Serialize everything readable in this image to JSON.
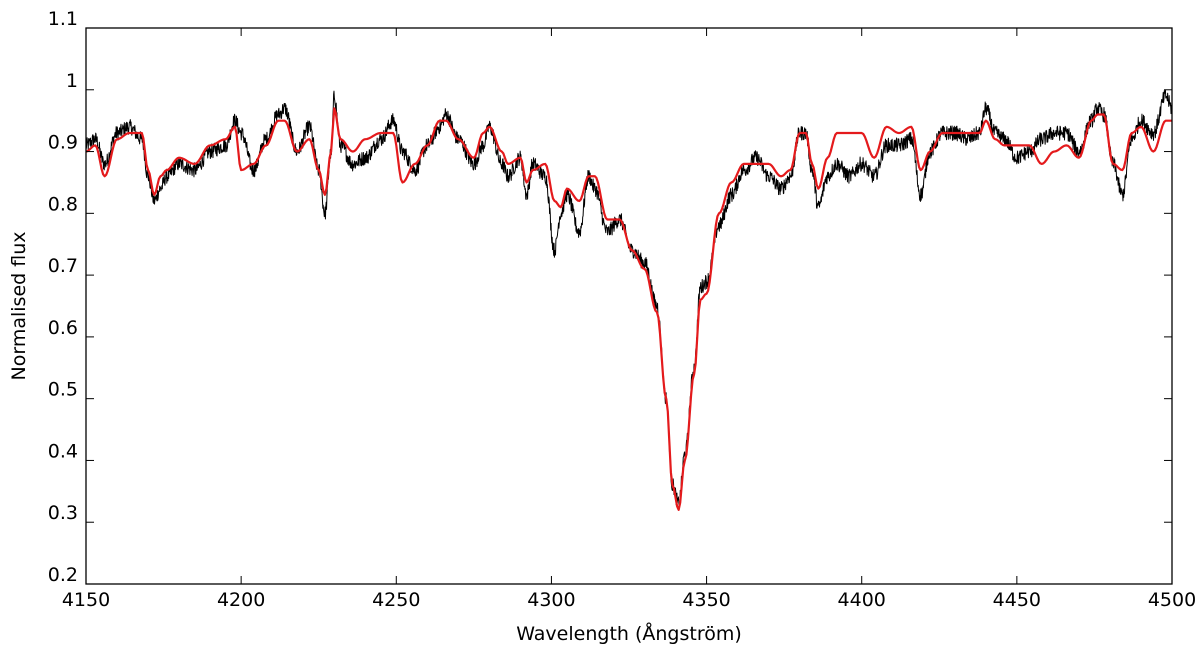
{
  "chart_data": {
    "type": "line",
    "title": "",
    "xlabel": "Wavelength (Ångström)",
    "ylabel": "Normalised flux",
    "xlim": [
      4150,
      4500
    ],
    "ylim": [
      0.2,
      1.1
    ],
    "xticks": [
      4150,
      4200,
      4250,
      4300,
      4350,
      4400,
      4450,
      4500
    ],
    "yticks": [
      0.2,
      0.3,
      0.4,
      0.5,
      0.6,
      0.7,
      0.8,
      0.9,
      1,
      1.1
    ],
    "grid": false,
    "legend": "none",
    "series": [
      {
        "color": "#000000",
        "noise": 0.012,
        "x": [
          4150,
          4153,
          4156,
          4160,
          4164,
          4168,
          4170,
          4172,
          4174,
          4176,
          4180,
          4185,
          4190,
          4195,
          4198,
          4200,
          4204,
          4208,
          4212,
          4214,
          4218,
          4222,
          4225,
          4227,
          4229,
          4230,
          4232,
          4236,
          4240,
          4245,
          4249,
          4252,
          4256,
          4260,
          4264,
          4266,
          4270,
          4275,
          4278,
          4280,
          4284,
          4286,
          4290,
          4292,
          4294,
          4298,
          4301,
          4303,
          4305,
          4309,
          4312,
          4314,
          4318,
          4322,
          4326,
          4330,
          4334,
          4337,
          4339,
          4341,
          4343,
          4346,
          4348,
          4350,
          4354,
          4358,
          4362,
          4366,
          4370,
          4374,
          4377,
          4380,
          4382,
          4384,
          4386,
          4389,
          4392,
          4396,
          4400,
          4404,
          4408,
          4412,
          4416,
          4419,
          4422,
          4426,
          4430,
          4434,
          4438,
          4440,
          4443,
          4446,
          4450,
          4454,
          4458,
          4462,
          4466,
          4470,
          4474,
          4476,
          4478,
          4481,
          4484,
          4487,
          4490,
          4494,
          4498,
          4500
        ],
        "values": [
          0.91,
          0.92,
          0.88,
          0.93,
          0.94,
          0.92,
          0.86,
          0.82,
          0.84,
          0.86,
          0.88,
          0.87,
          0.9,
          0.91,
          0.95,
          0.93,
          0.87,
          0.92,
          0.96,
          0.97,
          0.9,
          0.94,
          0.87,
          0.8,
          0.9,
          0.99,
          0.91,
          0.88,
          0.89,
          0.92,
          0.95,
          0.9,
          0.87,
          0.91,
          0.94,
          0.96,
          0.92,
          0.88,
          0.91,
          0.94,
          0.88,
          0.86,
          0.89,
          0.83,
          0.88,
          0.86,
          0.74,
          0.8,
          0.83,
          0.77,
          0.86,
          0.84,
          0.77,
          0.79,
          0.74,
          0.72,
          0.65,
          0.5,
          0.36,
          0.33,
          0.41,
          0.55,
          0.68,
          0.69,
          0.78,
          0.83,
          0.87,
          0.89,
          0.86,
          0.84,
          0.86,
          0.93,
          0.93,
          0.87,
          0.81,
          0.86,
          0.88,
          0.86,
          0.88,
          0.86,
          0.91,
          0.91,
          0.92,
          0.83,
          0.9,
          0.93,
          0.93,
          0.92,
          0.93,
          0.97,
          0.93,
          0.92,
          0.89,
          0.9,
          0.92,
          0.93,
          0.93,
          0.9,
          0.95,
          0.97,
          0.96,
          0.88,
          0.83,
          0.92,
          0.95,
          0.93,
          0.99,
          0.97
        ]
      },
      {
        "color": "#e41a1c",
        "noise": 0,
        "x": [
          4150,
          4153,
          4156,
          4160,
          4164,
          4168,
          4170,
          4172,
          4174,
          4176,
          4180,
          4185,
          4190,
          4195,
          4198,
          4200,
          4204,
          4208,
          4212,
          4214,
          4218,
          4222,
          4225,
          4227,
          4229,
          4230,
          4232,
          4236,
          4240,
          4245,
          4249,
          4252,
          4256,
          4260,
          4264,
          4266,
          4270,
          4275,
          4278,
          4280,
          4284,
          4286,
          4290,
          4292,
          4294,
          4298,
          4301,
          4303,
          4305,
          4309,
          4312,
          4314,
          4318,
          4322,
          4326,
          4330,
          4334,
          4337,
          4339,
          4341,
          4343,
          4346,
          4348,
          4350,
          4354,
          4358,
          4362,
          4366,
          4370,
          4374,
          4377,
          4380,
          4382,
          4384,
          4386,
          4389,
          4392,
          4396,
          4400,
          4404,
          4408,
          4412,
          4416,
          4419,
          4422,
          4426,
          4430,
          4434,
          4438,
          4440,
          4443,
          4446,
          4450,
          4454,
          4458,
          4462,
          4466,
          4470,
          4474,
          4476,
          4478,
          4481,
          4484,
          4487,
          4490,
          4494,
          4498,
          4500
        ],
        "values": [
          0.9,
          0.91,
          0.86,
          0.92,
          0.93,
          0.93,
          0.87,
          0.83,
          0.86,
          0.87,
          0.89,
          0.88,
          0.91,
          0.92,
          0.94,
          0.87,
          0.88,
          0.91,
          0.95,
          0.95,
          0.9,
          0.92,
          0.87,
          0.83,
          0.9,
          0.97,
          0.92,
          0.9,
          0.92,
          0.93,
          0.93,
          0.85,
          0.88,
          0.91,
          0.95,
          0.95,
          0.92,
          0.89,
          0.93,
          0.94,
          0.9,
          0.88,
          0.89,
          0.85,
          0.87,
          0.88,
          0.82,
          0.81,
          0.84,
          0.82,
          0.86,
          0.86,
          0.79,
          0.79,
          0.74,
          0.71,
          0.64,
          0.5,
          0.36,
          0.32,
          0.4,
          0.54,
          0.66,
          0.67,
          0.8,
          0.85,
          0.88,
          0.88,
          0.88,
          0.86,
          0.87,
          0.93,
          0.93,
          0.88,
          0.84,
          0.89,
          0.93,
          0.93,
          0.93,
          0.89,
          0.94,
          0.93,
          0.94,
          0.87,
          0.9,
          0.93,
          0.93,
          0.93,
          0.93,
          0.95,
          0.92,
          0.91,
          0.91,
          0.91,
          0.88,
          0.9,
          0.91,
          0.89,
          0.95,
          0.96,
          0.96,
          0.88,
          0.87,
          0.93,
          0.94,
          0.9,
          0.95,
          0.95
        ]
      }
    ]
  }
}
